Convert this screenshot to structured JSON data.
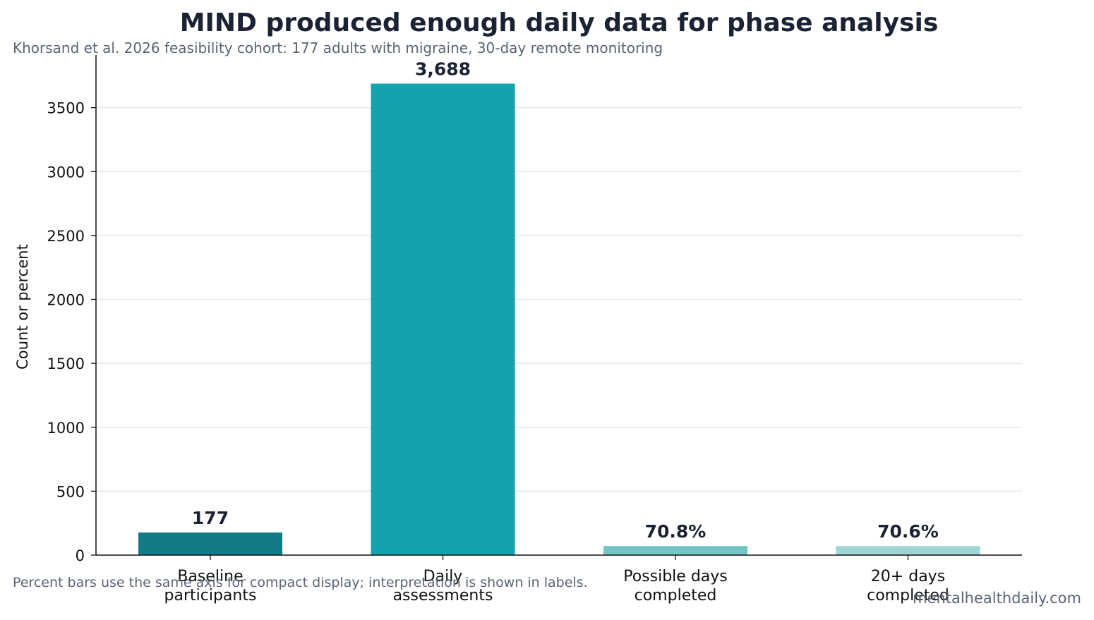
{
  "chart_data": {
    "type": "bar",
    "title": "MIND produced enough daily data for phase analysis",
    "subtitle": "Khorsand et al. 2026 feasibility cohort: 177 adults with migraine, 30-day remote monitoring",
    "xlabel": "",
    "ylabel": "Count or percent",
    "categories": [
      [
        "Baseline",
        "participants"
      ],
      [
        "Daily",
        "assessments"
      ],
      [
        "Possible days",
        "completed"
      ],
      [
        "20+ days",
        "completed"
      ]
    ],
    "values": [
      177,
      3688,
      70.8,
      70.6
    ],
    "value_labels": [
      "177",
      "3,688",
      "70.8%",
      "70.6%"
    ],
    "bar_colors": [
      "#117c87",
      "#14a3ad",
      "#74c4c6",
      "#9fd5d7"
    ],
    "ylim": [
      0,
      3900
    ],
    "yticks": [
      0,
      500,
      1000,
      1500,
      2000,
      2500,
      3000,
      3500
    ],
    "grid": "horizontal",
    "legend": "none"
  },
  "footnote": "Percent bars use the same axis for compact display; interpretation is shown in labels.",
  "source": "mentalhealthdaily.com",
  "colors": {
    "title": "#1a2233",
    "muted": "#5b6573",
    "grid": "#e5e7eb",
    "axis": "#111111"
  }
}
